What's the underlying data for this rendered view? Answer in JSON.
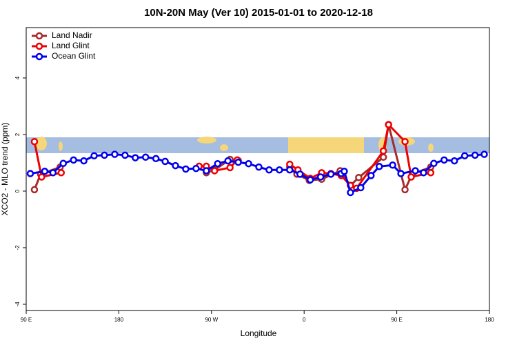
{
  "chart_data": {
    "type": "line",
    "title": "10N-20N May (Ver 10)   2015-01-01 to 2020-12-18",
    "xlabel": "Longitude",
    "ylabel": "XCO2 - MLO trend (ppm)",
    "xlim": [
      90,
      540
    ],
    "xticks": [
      {
        "value": 90,
        "label": "90 E"
      },
      {
        "value": 180,
        "label": "180"
      },
      {
        "value": 270,
        "label": "90 W"
      },
      {
        "value": 360,
        "label": "0"
      },
      {
        "value": 450,
        "label": "90 E"
      },
      {
        "value": 540,
        "label": "180"
      }
    ],
    "ylim": [
      -4.22,
      5.78
    ],
    "yticks": [
      -4,
      -2,
      0,
      2,
      4
    ],
    "legend": "top-left",
    "series": [
      {
        "name": "Land Nadir",
        "color": "#a52a2a",
        "x": [
          98,
          104,
          123,
          null,
          265,
          273,
          288,
          296,
          null,
          346,
          353,
          365,
          377,
          395,
          405,
          413,
          437,
          442,
          458,
          465,
          483
        ],
        "values": [
          0.05,
          0.6,
          0.85,
          null,
          0.65,
          0.75,
          1.12,
          1.08,
          null,
          0.85,
          0.6,
          0.38,
          0.42,
          0.72,
          0.2,
          0.48,
          1.2,
          2.35,
          0.05,
          0.6,
          0.85
        ]
      },
      {
        "name": "Land Glint",
        "color": "#ee0000",
        "x": [
          98,
          105,
          124,
          null,
          258,
          265,
          273,
          288,
          295,
          null,
          346,
          354,
          366,
          377,
          386,
          396,
          405,
          411,
          437,
          442,
          458,
          464,
          483
        ],
        "values": [
          1.75,
          0.5,
          0.65,
          null,
          0.88,
          0.88,
          0.72,
          0.83,
          1.1,
          null,
          0.95,
          0.75,
          0.45,
          0.65,
          0.62,
          0.55,
          0.2,
          0.1,
          1.42,
          2.35,
          1.75,
          0.5,
          0.65
        ]
      },
      {
        "name": "Ocean Glint",
        "color": "#0000ee",
        "x": [
          94,
          108,
          116,
          126,
          136,
          146,
          156,
          166,
          176,
          186,
          196,
          206,
          216,
          225,
          235,
          245,
          255,
          265,
          276,
          286,
          296,
          306,
          316,
          326,
          336,
          346,
          356,
          366,
          376,
          386,
          396,
          399,
          405,
          415,
          425,
          433,
          446,
          454,
          468,
          476,
          486,
          496,
          506,
          516,
          526,
          535
        ],
        "values": [
          0.62,
          0.7,
          0.65,
          0.98,
          1.1,
          1.07,
          1.25,
          1.27,
          1.3,
          1.27,
          1.18,
          1.2,
          1.15,
          1.05,
          0.9,
          0.78,
          0.8,
          0.72,
          0.97,
          1.07,
          1.02,
          0.97,
          0.85,
          0.75,
          0.75,
          0.75,
          0.6,
          0.4,
          0.5,
          0.6,
          0.62,
          0.7,
          -0.05,
          0.12,
          0.55,
          0.87,
          0.92,
          0.62,
          0.72,
          0.65,
          0.98,
          1.1,
          1.07,
          1.25,
          1.27,
          1.3
        ]
      }
    ]
  }
}
